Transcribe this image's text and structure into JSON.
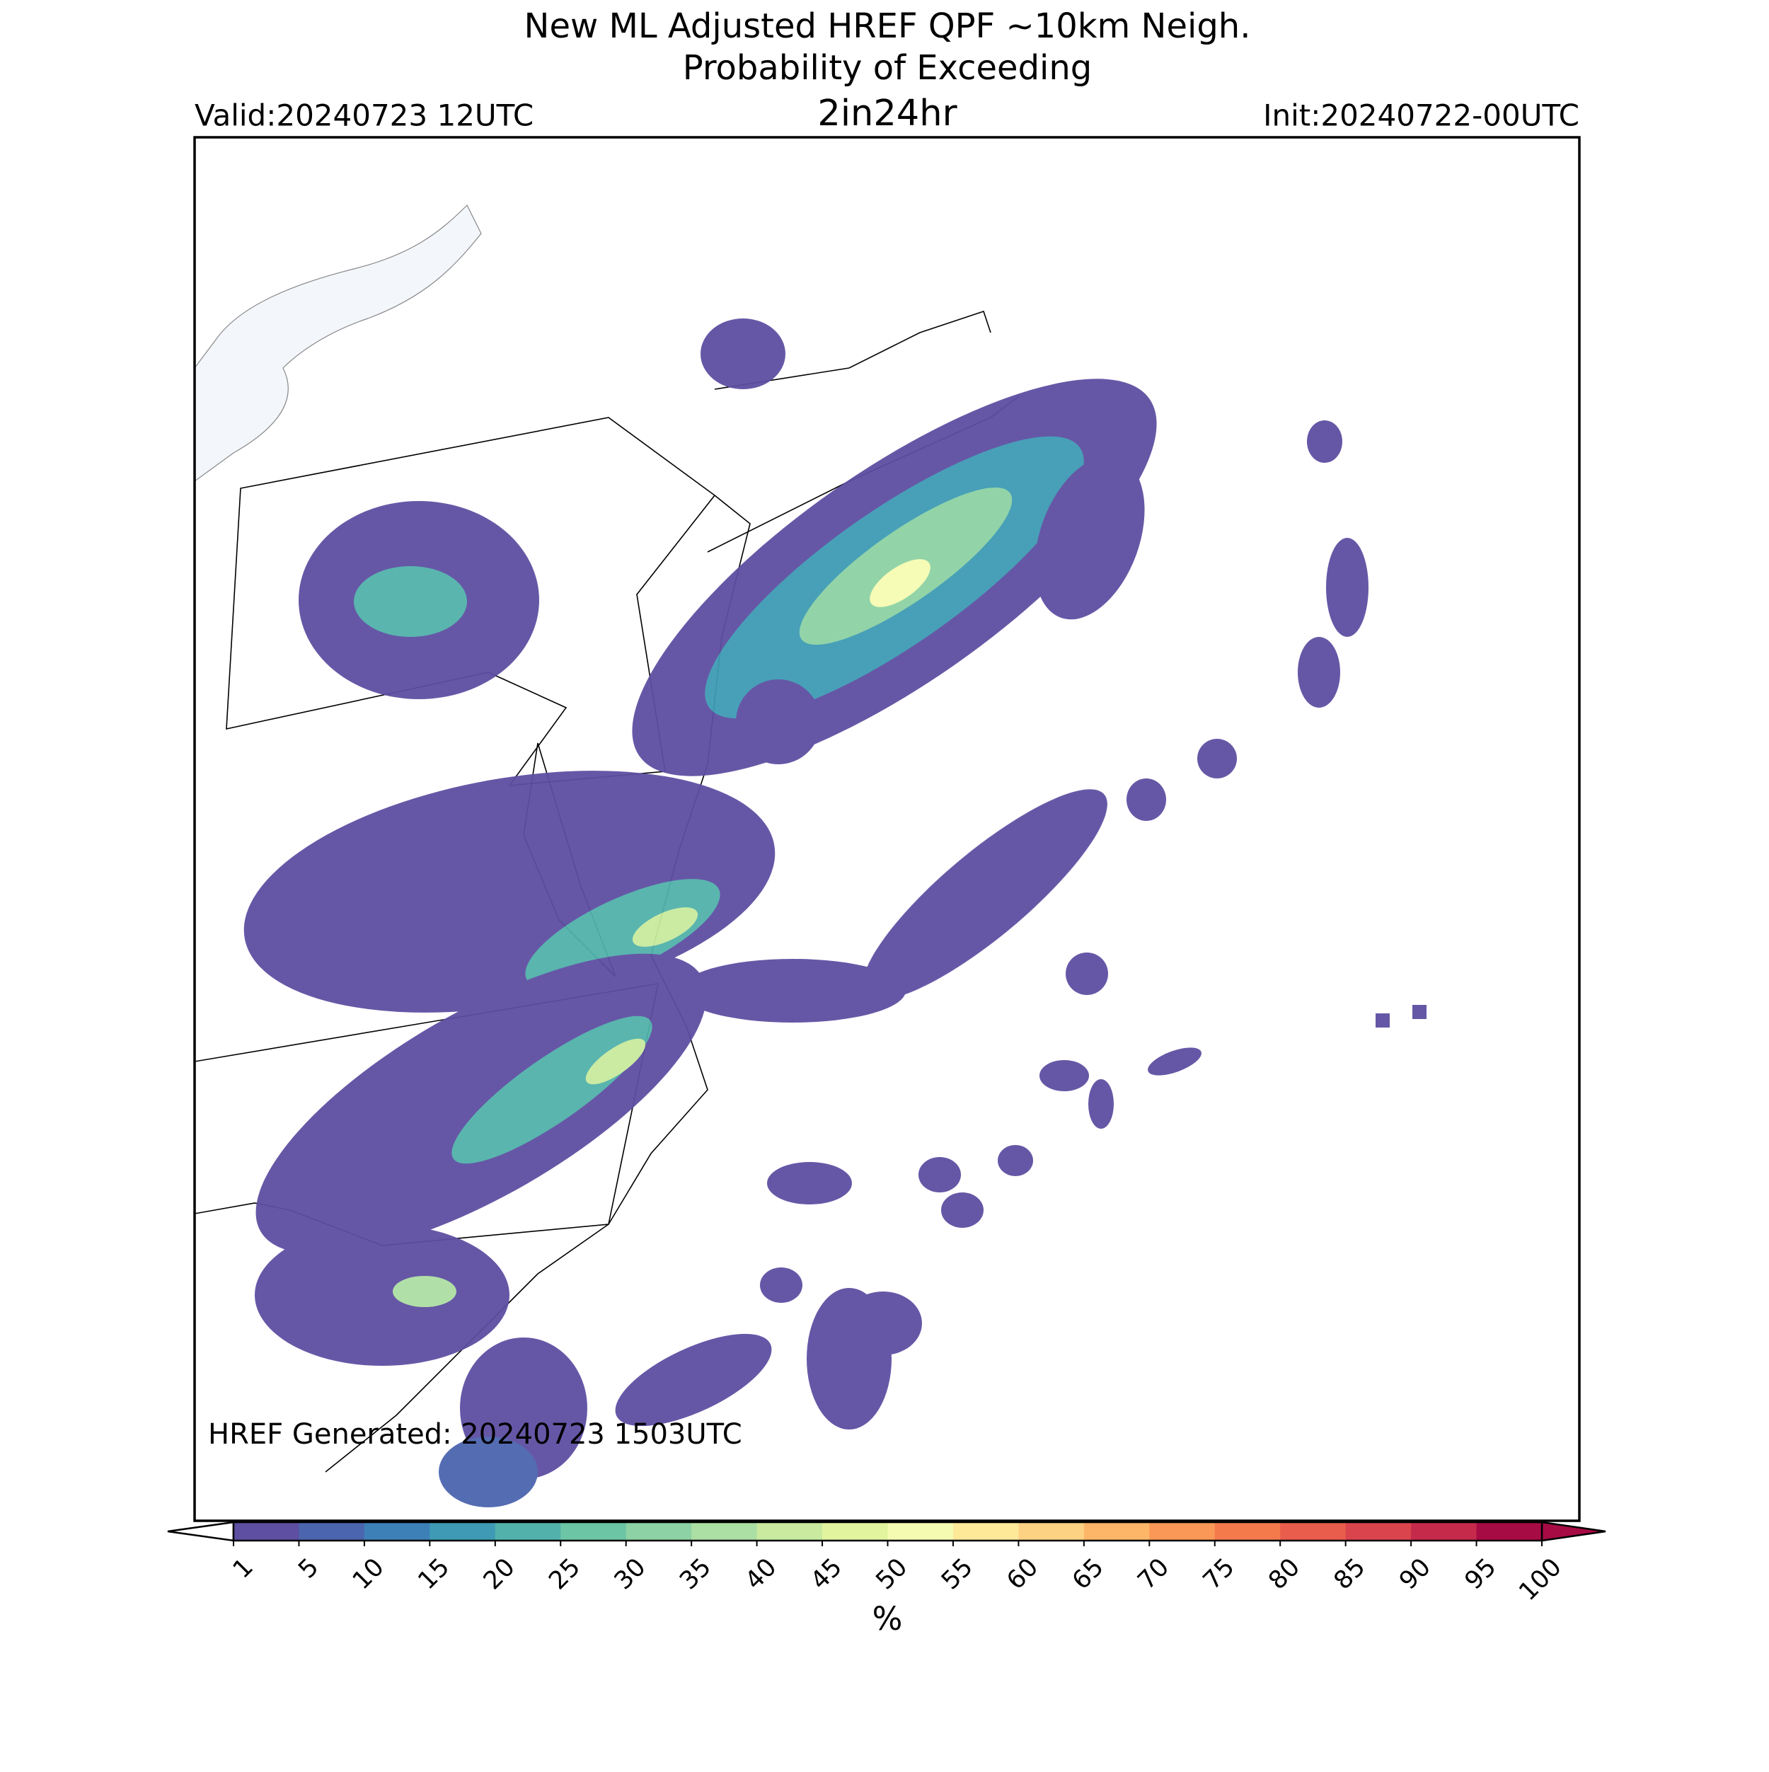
{
  "title": [
    "New ML Adjusted HREF QPF ~10km Neigh.",
    "Probability of Exceeding"
  ],
  "threshold": "2in24hr",
  "valid": "Valid:20240723 12UTC",
  "init": "Init:20240722-00UTC",
  "generated": "HREF Generated: 20240723 1503UTC",
  "colorbar": {
    "label": "%",
    "levels": [
      1,
      5,
      10,
      15,
      20,
      25,
      30,
      35,
      40,
      45,
      50,
      55,
      60,
      65,
      70,
      75,
      80,
      85,
      90,
      95,
      100
    ],
    "colors": [
      "#5e4fa2",
      "#4b65ae",
      "#3d80b8",
      "#3f9bb5",
      "#52b2ab",
      "#6cc5a5",
      "#8dd2a4",
      "#acdfa3",
      "#c9ea9f",
      "#e2f49e",
      "#f6fbb2",
      "#fee999",
      "#fed283",
      "#fdb567",
      "#fa9857",
      "#f47a4c",
      "#e85d4b",
      "#d9444d",
      "#c52a4b",
      "#a70b44"
    ]
  }
}
